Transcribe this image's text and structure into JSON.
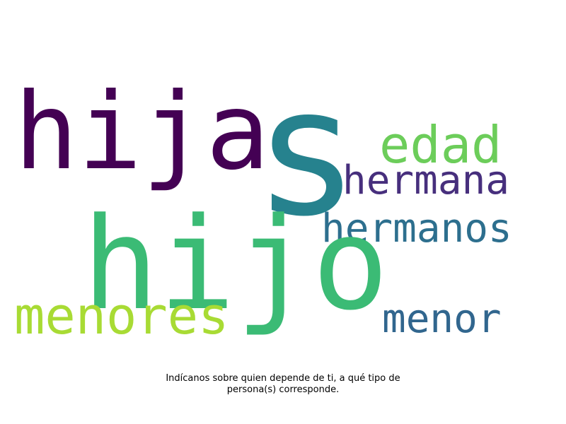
{
  "words": [
    {
      "text": "hija",
      "color": "#440154"
    },
    {
      "text": "s",
      "color": "#26828e"
    },
    {
      "text": "edad",
      "color": "#6ccd5a"
    },
    {
      "text": "hermana",
      "color": "#472f7d"
    },
    {
      "text": "hermanos",
      "color": "#2d6f8e"
    },
    {
      "text": "hijo",
      "color": "#3bbb75"
    },
    {
      "text": "menores",
      "color": "#a8db34"
    },
    {
      "text": "menor",
      "color": "#31668e"
    }
  ],
  "caption": {
    "line1": "Indícanos sobre quien depende de ti, a qué tipo de",
    "line2": "persona(s) corresponde."
  }
}
